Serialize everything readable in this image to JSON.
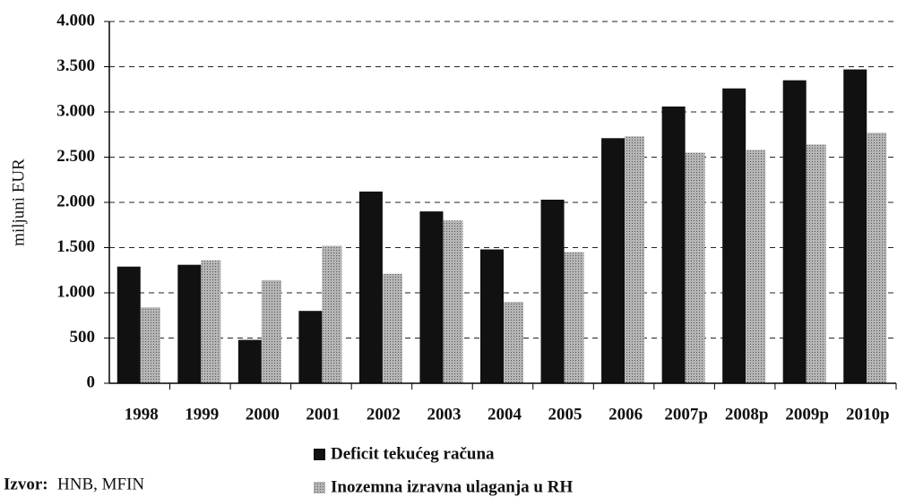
{
  "chart_data": {
    "type": "bar",
    "y_label": "miljuni EUR",
    "categories": [
      "1998",
      "1999",
      "2000",
      "2001",
      "2002",
      "2003",
      "2004",
      "2005",
      "2006",
      "2007p",
      "2008p",
      "2009p",
      "2010p"
    ],
    "series": [
      {
        "name": "Deficit tekućeg računa",
        "color": "#111111",
        "values": [
          1290,
          1310,
          480,
          800,
          2120,
          1900,
          1480,
          2030,
          2710,
          3060,
          3260,
          3350,
          3470
        ]
      },
      {
        "name": "Inozemna izravna ulaganja u RH",
        "color": "#9a9a9a",
        "values": [
          840,
          1360,
          1140,
          1520,
          1210,
          1800,
          900,
          1450,
          2730,
          2550,
          2580,
          2640,
          2770
        ]
      }
    ],
    "ylim": [
      0,
      4000
    ],
    "yticks": [
      0,
      {
        "value": 500,
        "label": "500"
      },
      {
        "value": 1000,
        "label": "1.000"
      },
      {
        "value": 1500,
        "label": "1.500"
      },
      {
        "value": 2000,
        "label": "2.000"
      },
      {
        "value": 2500,
        "label": "2.500"
      },
      {
        "value": 3000,
        "label": "3.000"
      },
      {
        "value": 3500,
        "label": "3.500"
      },
      {
        "value": 4000,
        "label": "4.000"
      }
    ],
    "grid": true,
    "source_label": "Izvor:",
    "source": "HNB, MFIN"
  }
}
